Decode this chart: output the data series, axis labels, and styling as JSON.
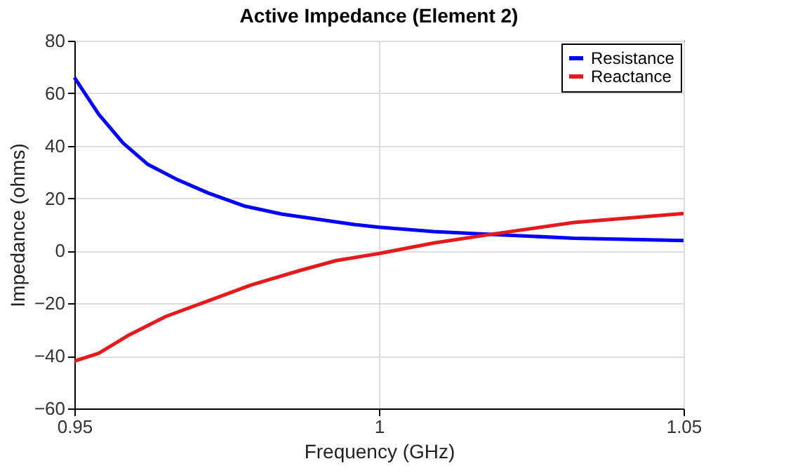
{
  "chart_data": {
    "type": "line",
    "title": "Active Impedance (Element 2)",
    "xlabel": "Frequency (GHz)",
    "ylabel": "Impedance (ohms)",
    "xlim": [
      0.95,
      1.05
    ],
    "xticks": [
      0.95,
      1,
      1.05
    ],
    "ylim": [
      -60,
      80
    ],
    "yticks": [
      -60,
      -40,
      -20,
      0,
      20,
      40,
      60,
      80
    ],
    "grid": true,
    "legend": "top right",
    "marker": "none",
    "line_style": "solid",
    "series": [
      {
        "name": "Resistance",
        "color": "#0000ff",
        "x": [
          0.95,
          0.954,
          0.958,
          0.962,
          0.967,
          0.972,
          0.978,
          0.984,
          0.99,
          0.996,
          1.0,
          1.009,
          1.019,
          1.032,
          1.05
        ],
        "values": [
          66,
          52,
          41,
          33,
          27,
          22,
          17,
          14,
          12,
          10,
          9,
          7.3,
          6.2,
          4.8,
          3.9
        ]
      },
      {
        "name": "Reactance",
        "color": "#e41a1c",
        "x": [
          0.95,
          0.954,
          0.959,
          0.965,
          0.972,
          0.979,
          0.987,
          0.993,
          1.0,
          1.009,
          1.019,
          1.032,
          1.05
        ],
        "values": [
          -42,
          -39,
          -32,
          -25,
          -19,
          -13,
          -7.5,
          -3.7,
          -1,
          3,
          6.5,
          10.8,
          14.2
        ]
      }
    ]
  }
}
